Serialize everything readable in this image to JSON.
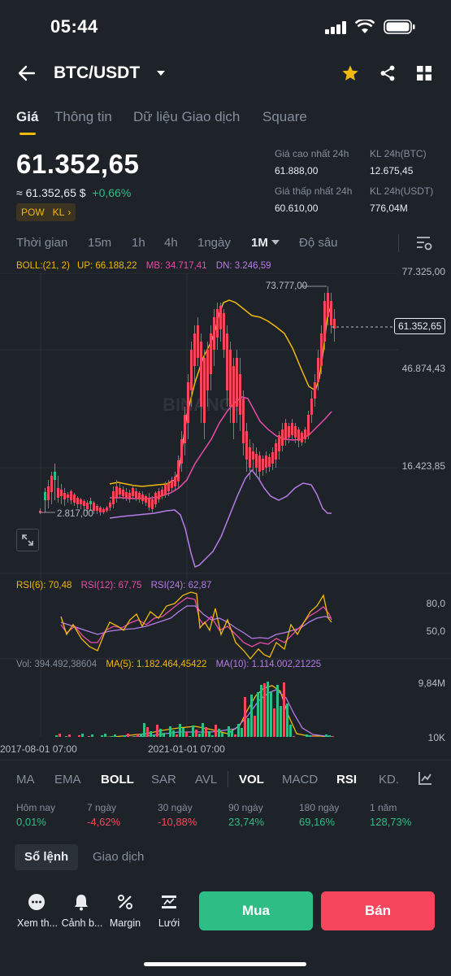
{
  "status_bar": {
    "time": "05:44"
  },
  "header": {
    "pair": "BTC/USDT"
  },
  "tabs": [
    "Giá",
    "Thông tin",
    "Dữ liệu Giao dịch",
    "Square"
  ],
  "price": {
    "last": "61.352,65",
    "approx": "≈ 61.352,65 $",
    "change": "+0,66%",
    "tags": [
      "POW",
      "KL"
    ]
  },
  "stats": {
    "high_label": "Giá cao nhất 24h",
    "high_value": "61.888,00",
    "low_label": "Giá thấp nhất 24h",
    "low_value": "60.610,00",
    "vol_btc_label": "KL 24h(BTC)",
    "vol_btc_value": "12.675,45",
    "vol_usdt_label": "KL 24h(USDT)",
    "vol_usdt_value": "776,04M"
  },
  "timeframes": [
    "Thời gian",
    "15m",
    "1h",
    "4h",
    "1ngày",
    "1M",
    "Độ sâu"
  ],
  "boll": {
    "label": "BOLL:(21, 2)",
    "up": "UP: 66.188,22",
    "mb": "MB: 34.717,41",
    "dn": "DN: 3.246,59"
  },
  "chart_axis": {
    "p1": "77.325,00",
    "p2": "46.874,43",
    "p3": "16.423,85",
    "max_label": "73.777,00",
    "min_label": "2.817,00",
    "current": "61.352,65"
  },
  "watermark": "BINANCE",
  "rsi": {
    "r6": "RSI(6): 70,48",
    "r12": "RSI(12): 67,75",
    "r24": "RSI(24): 62,87",
    "axis_top": "80,0",
    "axis_mid": "50,0"
  },
  "vol": {
    "vol": "Vol: 394.492,38604",
    "ma5": "MA(5): 1.182.464,45422",
    "ma10": "MA(10): 1.114.002,21225",
    "axis_top": "9,84M",
    "axis_bot": "10K"
  },
  "dates": [
    "2017-08-01 07:00",
    "2021-01-01 07:00"
  ],
  "indicator_tabs": [
    "MA",
    "EMA",
    "BOLL",
    "SAR",
    "AVL",
    "VOL",
    "MACD",
    "RSI",
    "KD."
  ],
  "performance": [
    {
      "label": "Hôm nay",
      "value": "0,01%"
    },
    {
      "label": "7 ngày",
      "value": "-4,62%"
    },
    {
      "label": "30 ngày",
      "value": "-10,88%"
    },
    {
      "label": "90 ngày",
      "value": "23,74%"
    },
    {
      "label": "180 ngày",
      "value": "69,16%"
    },
    {
      "label": "1 năm",
      "value": "128,73%"
    }
  ],
  "book_tabs": [
    "Sổ lệnh",
    "Giao dịch"
  ],
  "bottom_bar": [
    "Xem th...",
    "Cảnh b...",
    "Margin",
    "Lưới"
  ],
  "buttons": {
    "buy": "Mua",
    "sell": "Bán"
  }
}
